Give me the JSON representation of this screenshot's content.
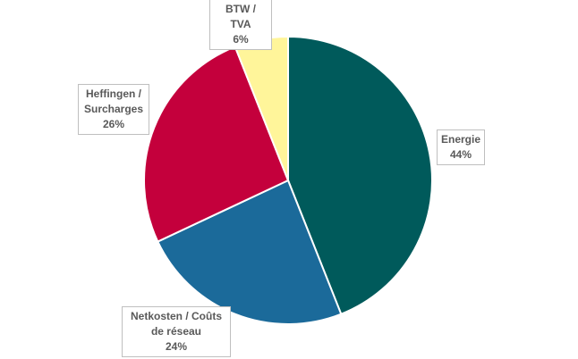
{
  "chart_data": {
    "type": "pie",
    "title": "",
    "start": "top, clockwise",
    "slices": [
      {
        "label_lines": [
          "Energie"
        ],
        "label": "Energie",
        "value": 44,
        "value_label": "44%",
        "color": "#005A5B"
      },
      {
        "label_lines": [
          "Netkosten / Coûts",
          "de réseau"
        ],
        "label": "Netkosten / Coûts de réseau",
        "value": 24,
        "value_label": "24%",
        "color": "#1B6A9A"
      },
      {
        "label_lines": [
          "Heffingen /",
          "Surcharges"
        ],
        "label": "Heffingen / Surcharges",
        "value": 26,
        "value_label": "26%",
        "color": "#C4003C"
      },
      {
        "label_lines": [
          "BTW / TVA"
        ],
        "label": "BTW / TVA",
        "value": 6,
        "value_label": "6%",
        "color": "#FFF59A"
      }
    ]
  }
}
